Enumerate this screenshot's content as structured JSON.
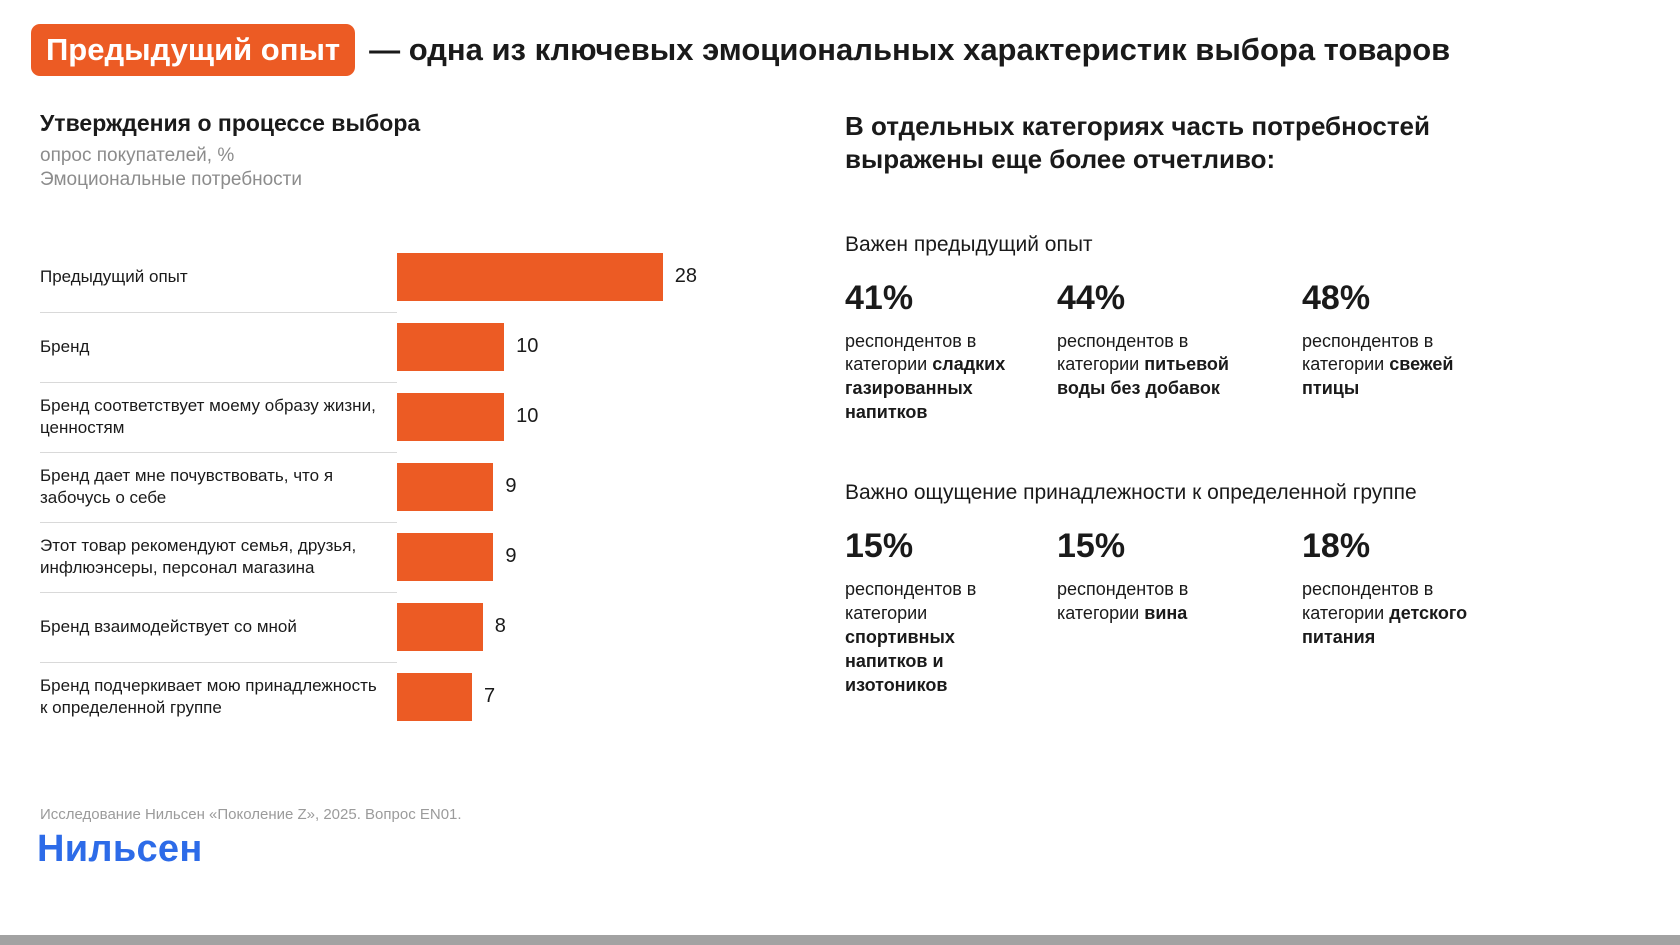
{
  "header": {
    "highlight": "Предыдущий опыт",
    "rest": "— одна из ключевых эмоциональных характеристик выбора товаров"
  },
  "colors": {
    "accent_orange": "#EC5B24",
    "logo_blue": "#2D6BE8",
    "divider_gray": "#D9D9D9",
    "subtitle_gray": "#8C8C8C"
  },
  "chart_data": {
    "type": "bar",
    "orientation": "horizontal",
    "title": "Утверждения о процессе выбора",
    "subtitle_line1": "опрос покупателей, %",
    "subtitle_line2": "Эмоциональные потребности",
    "categories": [
      "Предыдущий опыт",
      "Бренд",
      "Бренд соответствует моему образу жизни, ценностям",
      "Бренд дает мне почувствовать, что я забочусь о себе",
      "Этот товар рекомендуют семья, друзья, инфлюэнсеры, персонал магазина",
      "Бренд взаимодействует со мной",
      "Бренд подчеркивает мою принадлежность к определенной группе"
    ],
    "values": [
      28,
      10,
      10,
      9,
      9,
      8,
      7
    ],
    "xmax": 28,
    "bar_color": "#EC5B24",
    "grid": false,
    "legend": false
  },
  "right": {
    "heading": "В отдельных категориях часть потребностей выражены еще более отчетливо:",
    "sections": [
      {
        "title": "Важен предыдущий опыт",
        "stats": [
          {
            "percent": "41%",
            "text": "респондентов в категории",
            "bold": "сладких газированных напитков"
          },
          {
            "percent": "44%",
            "text": "респондентов в категории",
            "bold": "питьевой воды без добавок"
          },
          {
            "percent": "48%",
            "text": "респондентов в категории",
            "bold": "свежей птицы"
          }
        ]
      },
      {
        "title": "Важно ощущение принадлежности к определенной группе",
        "stats": [
          {
            "percent": "15%",
            "text": "респондентов в категории",
            "bold": "спортивных напитков и изотоников"
          },
          {
            "percent": "15%",
            "text": "респондентов в категории",
            "bold": "вина"
          },
          {
            "percent": "18%",
            "text": "респондентов в категории",
            "bold": "детского питания"
          }
        ]
      }
    ]
  },
  "footer": {
    "source": "Исследование Нильсен «Поколение Z», 2025. Вопрос EN01.",
    "logo": "Нильсен"
  }
}
